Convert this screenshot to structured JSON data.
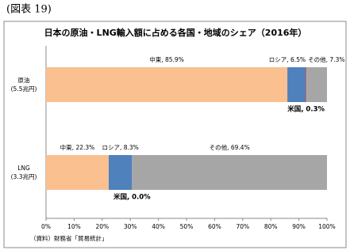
{
  "header": "(図表 19)",
  "chart_data": {
    "type": "stacked_barh",
    "title": "日本の原油・LNG輸入額に占める各国・地域のシェア（2016年）",
    "categories": [
      "原油",
      "LNG"
    ],
    "category_sublabels": [
      "(5.5兆円)",
      "(3.3兆円)"
    ],
    "series": [
      {
        "name": "中東",
        "color": "#fac090",
        "values": [
          85.9,
          22.3
        ],
        "value_labels": [
          "中東, 85.9%",
          "中東, 22.3%"
        ]
      },
      {
        "name": "ロシア",
        "color": "#4f81bd",
        "values": [
          6.5,
          8.3
        ],
        "value_labels": [
          "ロシア, 6.5%",
          "ロシア, 8.3%"
        ]
      },
      {
        "name": "米国",
        "color": "#c0504d",
        "values": [
          0.3,
          0.0
        ],
        "value_labels": [
          "米国, 0.3%",
          "米国, 0.0%"
        ]
      },
      {
        "name": "その他",
        "color": "#a6a6a6",
        "values": [
          7.3,
          69.4
        ],
        "value_labels": [
          "その他, 7.3%",
          "その他, 69.4%"
        ]
      }
    ],
    "xlim": [
      0,
      100
    ],
    "xticks": [
      {
        "value": 0,
        "label": "0%"
      },
      {
        "value": 10,
        "label": "10%"
      },
      {
        "value": 20,
        "label": "20%"
      },
      {
        "value": 30,
        "label": "30%"
      },
      {
        "value": 40,
        "label": "40%"
      },
      {
        "value": 50,
        "label": "50%"
      },
      {
        "value": 60,
        "label": "60%"
      },
      {
        "value": 70,
        "label": "70%"
      },
      {
        "value": 80,
        "label": "80%"
      },
      {
        "value": 90,
        "label": "90%"
      },
      {
        "value": 100,
        "label": "100%"
      }
    ],
    "source": "（資料）財務省「貿易統計」"
  }
}
